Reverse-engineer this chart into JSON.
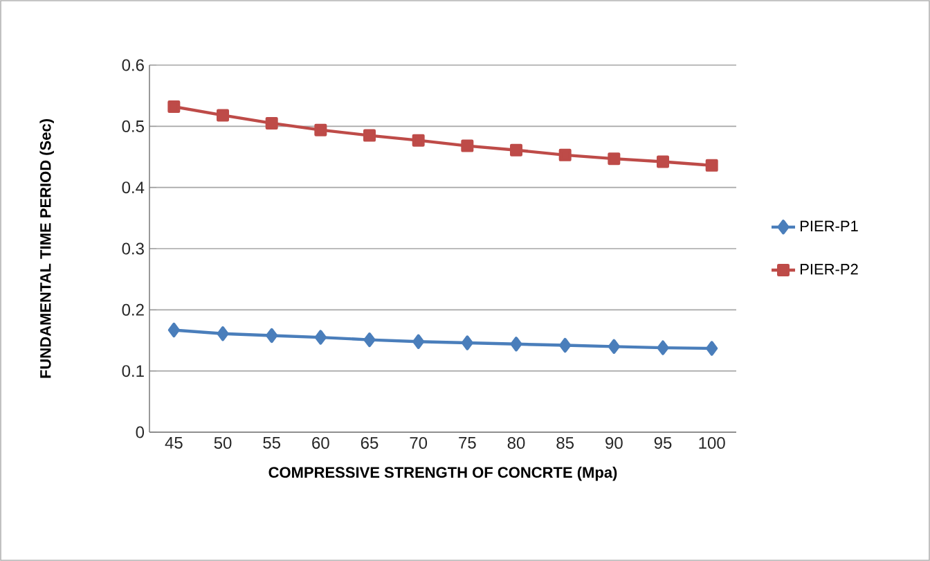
{
  "chart_data": {
    "type": "line",
    "xlabel": "COMPRESSIVE STRENGTH OF CONCRTE (Mpa)",
    "ylabel": "FUNDAMENTAL TIME PERIOD (Sec)",
    "categories": [
      "45",
      "50",
      "55",
      "60",
      "65",
      "70",
      "75",
      "80",
      "85",
      "90",
      "95",
      "100"
    ],
    "series": [
      {
        "name": "PIER-P1",
        "color": "#4a7ebb",
        "marker": "diamond",
        "values": [
          0.167,
          0.161,
          0.158,
          0.155,
          0.151,
          0.148,
          0.146,
          0.144,
          0.142,
          0.14,
          0.138,
          0.137
        ]
      },
      {
        "name": "PIER-P2",
        "color": "#be4b48",
        "marker": "square",
        "values": [
          0.532,
          0.518,
          0.505,
          0.494,
          0.485,
          0.477,
          0.468,
          0.461,
          0.453,
          0.447,
          0.442,
          0.436
        ]
      }
    ],
    "ylim": [
      0,
      0.6
    ],
    "yticks": [
      0,
      0.1,
      0.2,
      0.3,
      0.4,
      0.5,
      0.6
    ],
    "grid": "y",
    "legend": "right",
    "line_style": "solid"
  }
}
